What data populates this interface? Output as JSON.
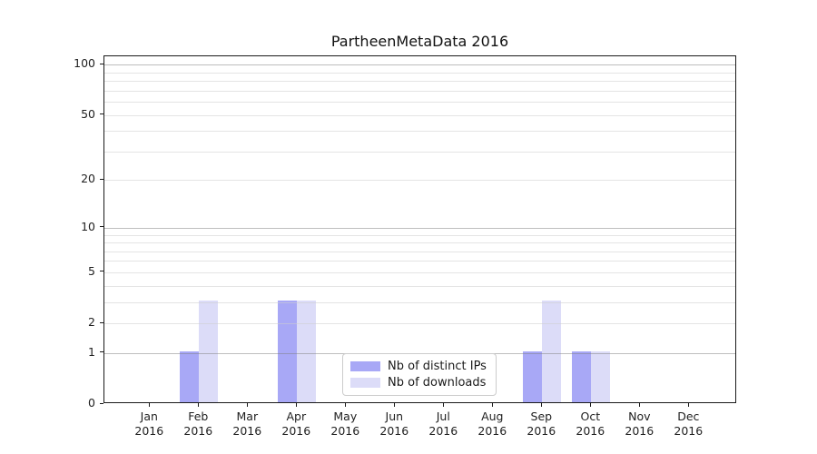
{
  "chart_data": {
    "type": "bar",
    "title": "PartheenMetaData 2016",
    "categories": [
      "Jan",
      "Feb",
      "Mar",
      "Apr",
      "May",
      "Jun",
      "Jul",
      "Aug",
      "Sep",
      "Oct",
      "Nov",
      "Dec"
    ],
    "year": "2016",
    "series": [
      {
        "name": "Nb of distinct IPs",
        "color": "#a8a8f6",
        "values": [
          0,
          1,
          0,
          3,
          0,
          0,
          0,
          0,
          1,
          1,
          0,
          0
        ]
      },
      {
        "name": "Nb of downloads",
        "color": "#dcdcf8",
        "values": [
          0,
          3,
          0,
          3,
          0,
          0,
          0,
          0,
          3,
          1,
          0,
          0
        ]
      }
    ],
    "yscale": "log1p",
    "ylim": [
      0,
      112
    ],
    "ytick_values": [
      0,
      1,
      2,
      5,
      10,
      20,
      50,
      100
    ],
    "ytick_labels": [
      "0",
      "1",
      "2",
      "5",
      "10",
      "20",
      "50",
      "100"
    ],
    "grid": {
      "on": true,
      "major_values": [
        1,
        10,
        100
      ],
      "minor_values": [
        2,
        3,
        4,
        5,
        6,
        7,
        8,
        9,
        20,
        30,
        40,
        50,
        60,
        70,
        80,
        90
      ],
      "position": "above-bars"
    },
    "legend": {
      "position": "lower center",
      "entries": [
        "Nb of distinct IPs",
        "Nb of downloads"
      ]
    },
    "xlabel": "",
    "ylabel": ""
  },
  "colors": {
    "background": "#ffffff",
    "spine": "#1a1a1a",
    "grid_major": "#bcbcbc",
    "grid_minor": "#ececec",
    "text": "#1f1f1f",
    "legend_border": "#cccccc"
  }
}
